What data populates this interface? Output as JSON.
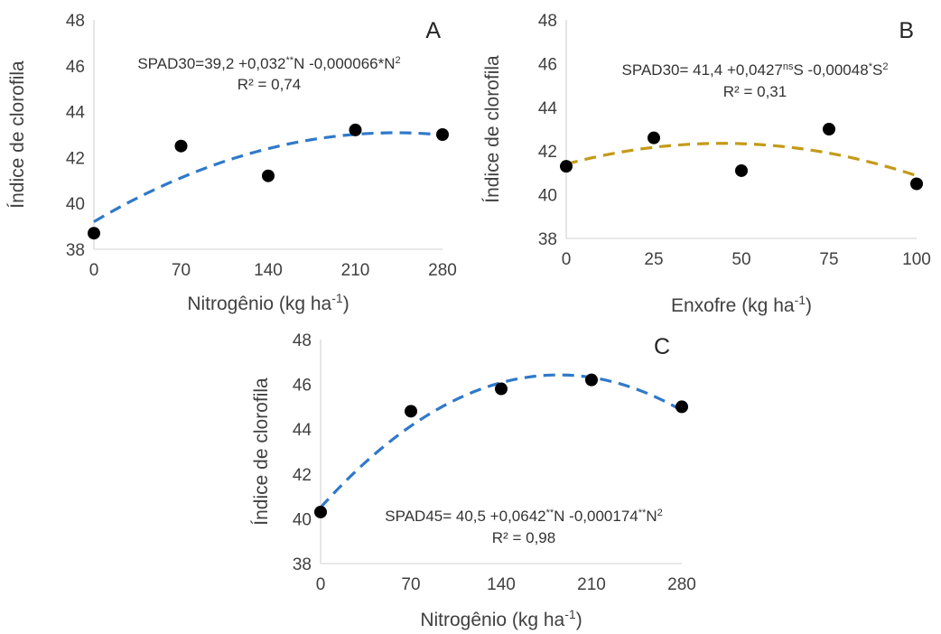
{
  "chart_data": [
    {
      "type": "scatter",
      "panel_label": "A",
      "xlabel": "Nitrogênio (kg ha",
      "xlabel_superscript": "-1",
      "xlabel_close": ")",
      "ylabel": "Índice de clorofila",
      "x": [
        0,
        70,
        140,
        210,
        280
      ],
      "y": [
        38.7,
        42.5,
        41.2,
        43.2,
        43.0
      ],
      "xticks": [
        "0",
        "70",
        "140",
        "210",
        "280"
      ],
      "yticks": [
        "38",
        "40",
        "42",
        "44",
        "46",
        "48"
      ],
      "xlim": [
        0,
        280
      ],
      "ylim": [
        38,
        48
      ],
      "fit": {
        "a": 39.2,
        "b": 0.032,
        "c": -6.6e-05,
        "color": "#2f79c9"
      },
      "equation": {
        "line1": [
          {
            "t": "SPAD30=39,2 +0,032"
          },
          {
            "t": "**",
            "sup": true
          },
          {
            "t": "N -0,000066*N"
          },
          {
            "t": "2",
            "sup": true
          }
        ],
        "r2": "R² = 0,74"
      },
      "marker_color": "#000000",
      "grid": false
    },
    {
      "type": "scatter",
      "panel_label": "B",
      "xlabel": "Enxofre (kg ha",
      "xlabel_superscript": "-1",
      "xlabel_close": ")",
      "ylabel": "Índice de clorofila",
      "x": [
        0,
        25,
        50,
        75,
        100
      ],
      "y": [
        41.3,
        42.6,
        41.1,
        43.0,
        40.5
      ],
      "xticks": [
        "0",
        "25",
        "50",
        "75",
        "100"
      ],
      "yticks": [
        "38",
        "40",
        "42",
        "44",
        "46",
        "48"
      ],
      "xlim": [
        0,
        100
      ],
      "ylim": [
        38,
        48
      ],
      "fit": {
        "a": 41.4,
        "b": 0.0427,
        "c": -0.00048,
        "color": "#c49a18"
      },
      "equation": {
        "line1": [
          {
            "t": "SPAD30= 41,4 +0,0427"
          },
          {
            "t": "ns",
            "sup": true
          },
          {
            "t": "S -0,00048"
          },
          {
            "t": "*",
            "sup": true
          },
          {
            "t": "S"
          },
          {
            "t": "2",
            "sup": true
          }
        ],
        "r2": "R² = 0,31"
      },
      "marker_color": "#000000",
      "grid": false
    },
    {
      "type": "scatter",
      "panel_label": "C",
      "xlabel": "Nitrogênio (kg ha",
      "xlabel_superscript": "-1",
      "xlabel_close": ")",
      "ylabel": "Índice de clorofila",
      "x": [
        0,
        70,
        140,
        210,
        280
      ],
      "y": [
        40.3,
        44.8,
        45.8,
        46.2,
        45.0
      ],
      "xticks": [
        "0",
        "70",
        "140",
        "210",
        "280"
      ],
      "yticks": [
        "38",
        "40",
        "42",
        "44",
        "46",
        "48"
      ],
      "xlim": [
        0,
        280
      ],
      "ylim": [
        38,
        48
      ],
      "fit": {
        "a": 40.5,
        "b": 0.0642,
        "c": -0.000174,
        "color": "#2f79c9"
      },
      "equation": {
        "line1": [
          {
            "t": "SPAD45= 40,5 +0,0642"
          },
          {
            "t": "**",
            "sup": true
          },
          {
            "t": "N -0,000174"
          },
          {
            "t": "**",
            "sup": true
          },
          {
            "t": "N"
          },
          {
            "t": "2",
            "sup": true
          }
        ],
        "r2": "R² = 0,98"
      },
      "marker_color": "#000000",
      "grid": false
    }
  ]
}
